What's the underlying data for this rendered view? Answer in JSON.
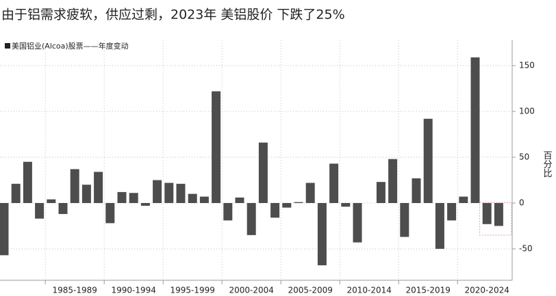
{
  "chart_data": {
    "type": "bar",
    "title": "由于铝需求疲软，供应过剩，2023年 美铝股价 下跌了25%",
    "y_axis_label": "百分比",
    "series": [
      {
        "name": "美国铝业(Alcoa)股票——年度变动",
        "color": "#4d4d4d",
        "values": [
          -57,
          21,
          45,
          -17,
          4,
          -12,
          37,
          20,
          34,
          -22,
          12,
          11,
          -3,
          25,
          22,
          21,
          10,
          7,
          122,
          -19,
          6,
          -35,
          66,
          -16,
          -5,
          1,
          22,
          -68,
          43,
          -4,
          -43,
          0,
          23,
          48,
          -37,
          27,
          92,
          -50,
          -19,
          7,
          159,
          -23,
          -25
        ]
      }
    ],
    "categories": [
      null,
      null,
      null,
      null,
      null,
      null,
      null,
      null,
      null,
      null,
      null,
      null,
      null,
      null,
      null,
      null,
      null,
      null,
      null,
      null,
      null,
      null,
      null,
      null,
      null,
      null,
      null,
      null,
      null,
      null,
      null,
      null,
      null,
      null,
      null,
      null,
      null,
      null,
      null,
      null,
      null,
      null,
      null
    ],
    "category_groups": [
      "1985-1989",
      "1990-1994",
      "1995-1999",
      "2000-2004",
      "2005-2009",
      "2010-2014",
      "2015-2019",
      "2020-2024"
    ],
    "ylim": [
      -78,
      178
    ],
    "yticks": [
      -50,
      0,
      50,
      100,
      150
    ],
    "grid": true,
    "legend": "top-left"
  }
}
